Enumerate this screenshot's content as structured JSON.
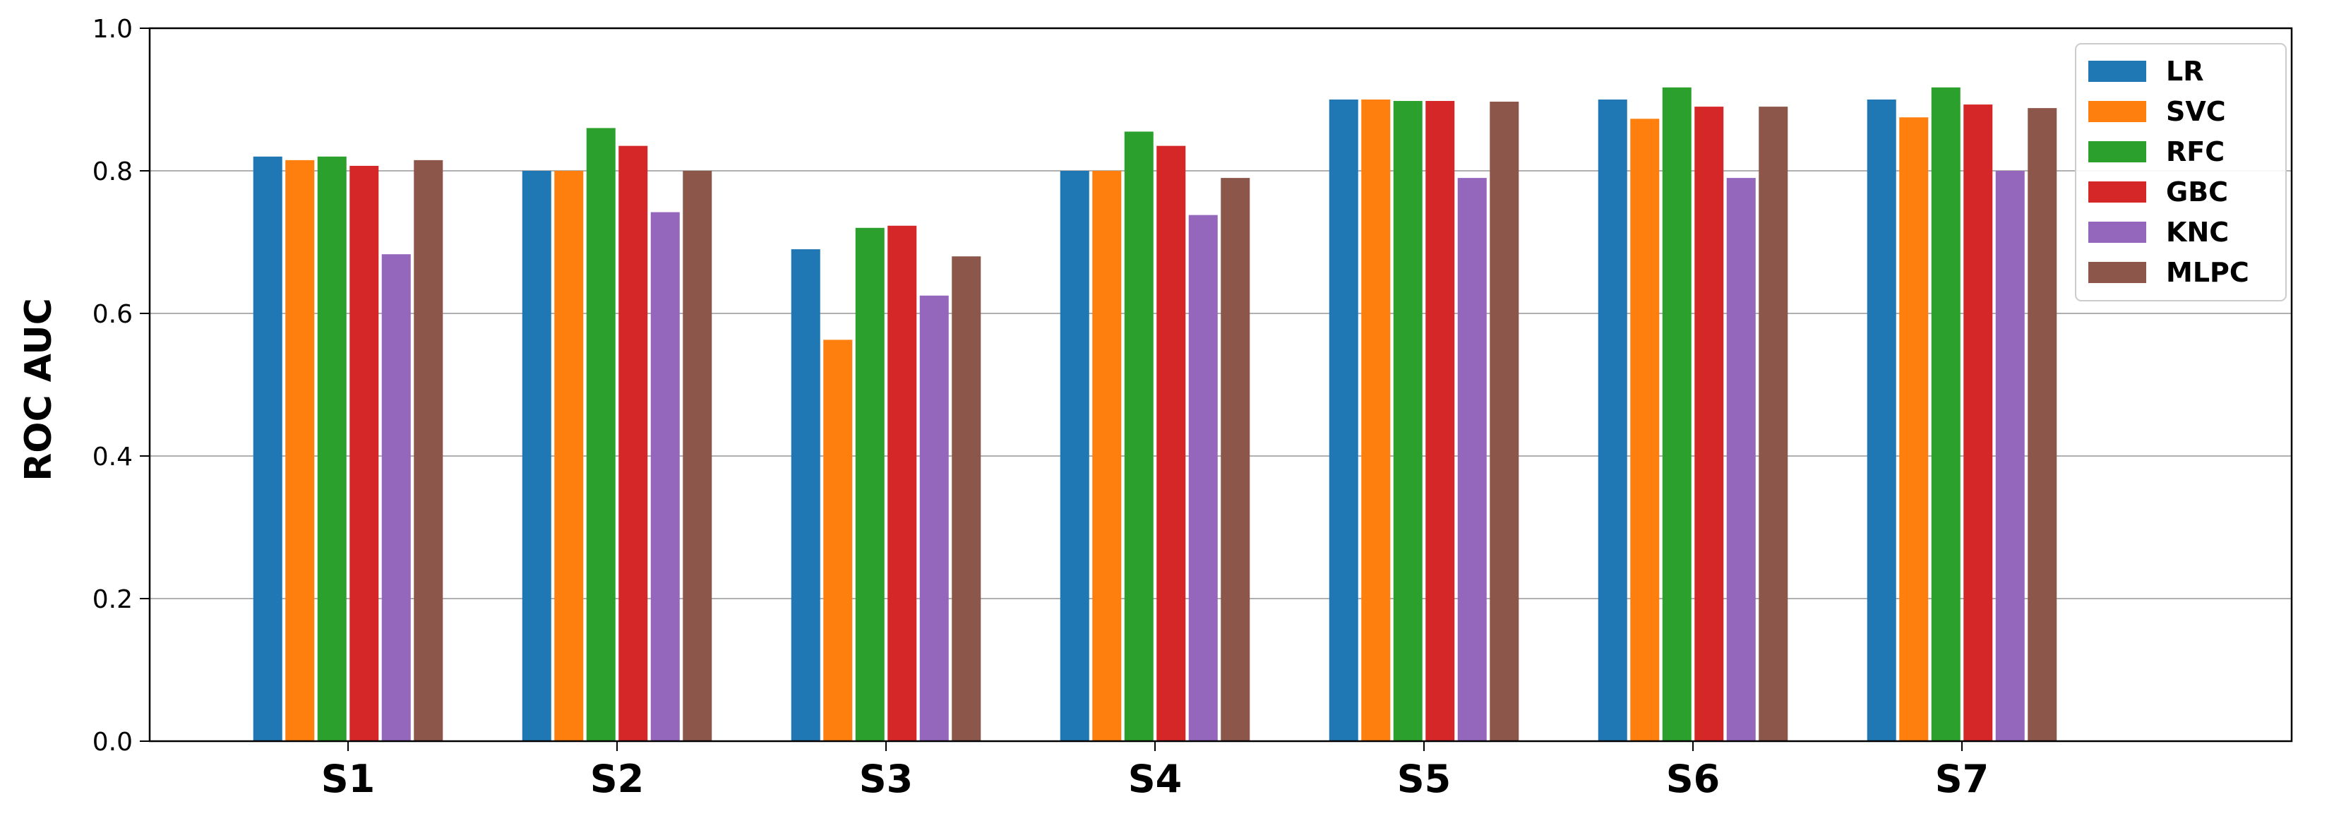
{
  "chart_data": {
    "type": "bar",
    "title": "",
    "xlabel": "",
    "ylabel": "ROC AUC",
    "ylim": [
      0.0,
      1.0
    ],
    "yticks": [
      "0.0",
      "0.2",
      "0.4",
      "0.6",
      "0.8",
      "1.0"
    ],
    "grid": "horizontal",
    "legend_position": "top-right",
    "categories": [
      "S1",
      "S2",
      "S3",
      "S4",
      "S5",
      "S6",
      "S7"
    ],
    "series": [
      {
        "name": "LR",
        "color": "#1f77b4",
        "values": [
          0.82,
          0.8,
          0.69,
          0.8,
          0.9,
          0.9,
          0.9
        ]
      },
      {
        "name": "SVC",
        "color": "#ff7f0e",
        "values": [
          0.815,
          0.8,
          0.563,
          0.8,
          0.9,
          0.873,
          0.875
        ]
      },
      {
        "name": "RFC",
        "color": "#2ca02c",
        "values": [
          0.82,
          0.86,
          0.72,
          0.855,
          0.898,
          0.917,
          0.917
        ]
      },
      {
        "name": "GBC",
        "color": "#d62728",
        "values": [
          0.807,
          0.835,
          0.723,
          0.835,
          0.898,
          0.89,
          0.893
        ]
      },
      {
        "name": "KNC",
        "color": "#9467bd",
        "values": [
          0.683,
          0.742,
          0.625,
          0.738,
          0.79,
          0.79,
          0.8
        ]
      },
      {
        "name": "MLPC",
        "color": "#8c564b",
        "values": [
          0.815,
          0.8,
          0.68,
          0.79,
          0.897,
          0.89,
          0.888
        ]
      }
    ]
  }
}
